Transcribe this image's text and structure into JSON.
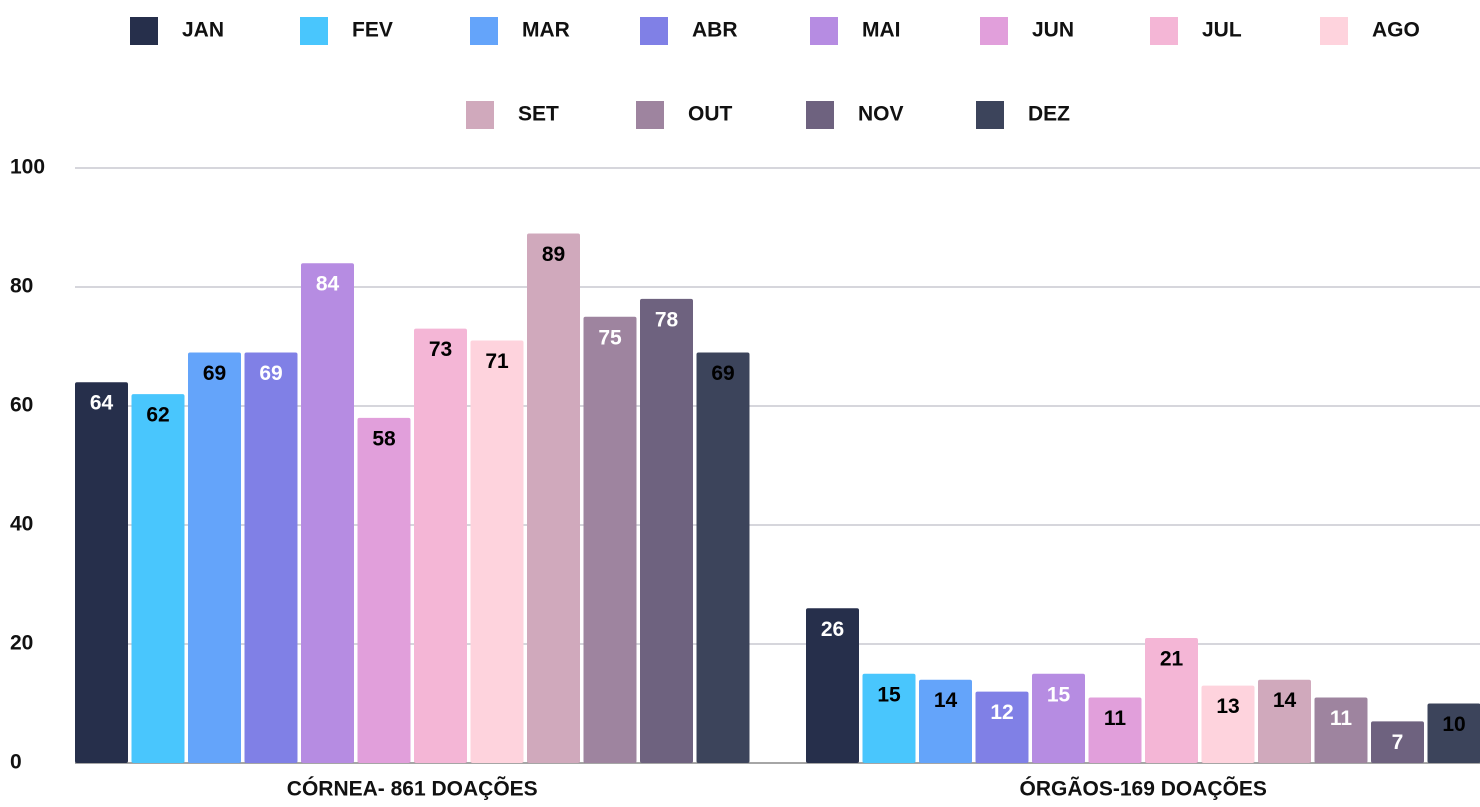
{
  "chart_data": {
    "type": "bar",
    "categories": [
      "CÓRNEA- 861 DOAÇÕES",
      "ÓRGÃOS-169 DOAÇÕES"
    ],
    "series": [
      {
        "name": "JAN",
        "color": "#262f4b",
        "label_color": "#ffffff",
        "values": [
          64,
          26
        ]
      },
      {
        "name": "FEV",
        "color": "#49c6fd",
        "label_color": "#000000",
        "values": [
          62,
          15
        ]
      },
      {
        "name": "MAR",
        "color": "#64a4fa",
        "label_color": "#000000",
        "values": [
          69,
          14
        ]
      },
      {
        "name": "ABR",
        "color": "#8080e6",
        "label_color": "#ffffff",
        "values": [
          69,
          12
        ]
      },
      {
        "name": "MAI",
        "color": "#b68ce2",
        "label_color": "#ffffff",
        "values": [
          84,
          15
        ]
      },
      {
        "name": "JUN",
        "color": "#e19fdb",
        "label_color": "#000000",
        "values": [
          58,
          11
        ]
      },
      {
        "name": "JUL",
        "color": "#f4b6d6",
        "label_color": "#000000",
        "values": [
          73,
          21
        ]
      },
      {
        "name": "AGO",
        "color": "#fed3dd",
        "label_color": "#000000",
        "values": [
          71,
          13
        ]
      },
      {
        "name": "SET",
        "color": "#d0a9bc",
        "label_color": "#000000",
        "values": [
          89,
          14
        ]
      },
      {
        "name": "OUT",
        "color": "#9e849f",
        "label_color": "#ffffff",
        "values": [
          75,
          11
        ]
      },
      {
        "name": "NOV",
        "color": "#6e627f",
        "label_color": "#ffffff",
        "values": [
          78,
          7
        ]
      },
      {
        "name": "DEZ",
        "color": "#3c445b",
        "label_color": "#000000",
        "values": [
          69,
          10
        ]
      }
    ],
    "ylim": [
      0,
      100
    ],
    "yticks": [
      0,
      20,
      40,
      60,
      80,
      100
    ],
    "grid": true,
    "legend": "top"
  }
}
